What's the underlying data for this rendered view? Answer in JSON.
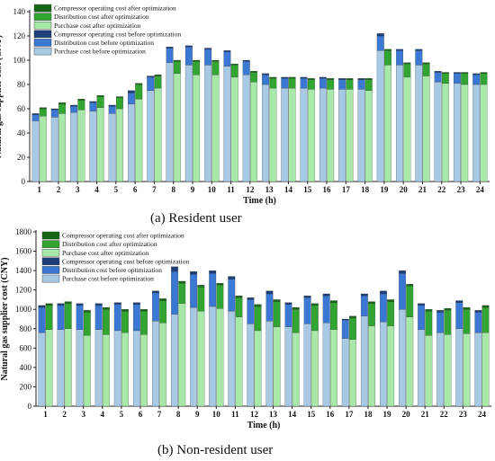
{
  "figure": {
    "caption_a": "(a) Resident user",
    "caption_b": "(b) Non-resident user"
  },
  "colors": {
    "purchase_before": "#a7c9e4",
    "distribution_before": "#3a78d4",
    "compressor_before": "#1d3e78",
    "purchase_after": "#a8e8a8",
    "distribution_after": "#32a432",
    "compressor_after": "#166616"
  },
  "chart_data": [
    {
      "type": "bar",
      "stacked": true,
      "grouped": true,
      "title": "",
      "xlabel": "Time (h)",
      "ylabel": "Natural gas supplier cost (CNY)",
      "ylim": [
        0,
        140
      ],
      "yticks": [
        0,
        20,
        40,
        60,
        80,
        100,
        120,
        140
      ],
      "categories": [
        "1",
        "2",
        "3",
        "4",
        "5",
        "6",
        "7",
        "8",
        "9",
        "10",
        "11",
        "12",
        "13",
        "14",
        "15",
        "16",
        "17",
        "18",
        "19",
        "20",
        "21",
        "22",
        "23",
        "24"
      ],
      "grid": false,
      "legend_position": "top-left",
      "legend": [
        "Compressor operating cost after optimization",
        "Distribution cost after optimization",
        "Purchase cost after optimization",
        "Compressor operating cost before optimization",
        "Distribution cost before optimization",
        "Purchase cost before optimization"
      ],
      "series": [
        {
          "name": "Purchase cost before optimization",
          "group": "before",
          "values": [
            50,
            53,
            57,
            58,
            56,
            64,
            75,
            98,
            96,
            96,
            95,
            88,
            80,
            77,
            77,
            77,
            76,
            76,
            108,
            96,
            96,
            82,
            81,
            80
          ]
        },
        {
          "name": "Distribution cost before optimization",
          "group": "before",
          "values": [
            5,
            6,
            5,
            7,
            6,
            9,
            11,
            12,
            15,
            13,
            12,
            11,
            8,
            8,
            8,
            8,
            8,
            8,
            12,
            12,
            12,
            8,
            8,
            8
          ]
        },
        {
          "name": "Compressor operating cost before optimization",
          "group": "before",
          "values": [
            1,
            1,
            1,
            1,
            1,
            2,
            1,
            1,
            1,
            1,
            1,
            1,
            1,
            1,
            1,
            1,
            1,
            1,
            2,
            1,
            1,
            1,
            1,
            1
          ]
        },
        {
          "name": "Purchase cost after optimization",
          "group": "after",
          "values": [
            54,
            56,
            59,
            61,
            60,
            68,
            77,
            89,
            88,
            88,
            86,
            82,
            77,
            77,
            76,
            76,
            76,
            75,
            96,
            86,
            87,
            81,
            80,
            80
          ]
        },
        {
          "name": "Distribution cost after optimization",
          "group": "after",
          "values": [
            6,
            8,
            8,
            9,
            9,
            12,
            10,
            10,
            11,
            11,
            10,
            8,
            8,
            8,
            8,
            8,
            8,
            9,
            12,
            11,
            10,
            8,
            9,
            9
          ]
        },
        {
          "name": "Compressor operating cost after optimization",
          "group": "after",
          "values": [
            1,
            1,
            1,
            1,
            1,
            1,
            1,
            1,
            1,
            1,
            1,
            1,
            1,
            1,
            1,
            1,
            1,
            1,
            1,
            1,
            1,
            1,
            1,
            1
          ]
        }
      ]
    },
    {
      "type": "bar",
      "stacked": true,
      "grouped": true,
      "title": "",
      "xlabel": "Time (h)",
      "ylabel": "Natural gas supplier cost (CNY)",
      "ylim": [
        0,
        1800
      ],
      "yticks": [
        0,
        200,
        400,
        600,
        800,
        1000,
        1200,
        1400,
        1600,
        1800
      ],
      "categories": [
        "1",
        "2",
        "3",
        "4",
        "5",
        "6",
        "7",
        "8",
        "9",
        "10",
        "11",
        "12",
        "13",
        "14",
        "15",
        "16",
        "17",
        "18",
        "19",
        "20",
        "21",
        "22",
        "23",
        "24"
      ],
      "grid": false,
      "legend_position": "top-left",
      "legend": [
        "Compressor operating cost after optimization",
        "Distribution cost after optimization",
        "Purchase cost after optimization",
        "Compressor operating cost before optimization",
        "Distribution cost before optimization",
        "Purchase cost before optimization"
      ],
      "series": [
        {
          "name": "Purchase cost before optimization",
          "group": "before",
          "values": [
            760,
            790,
            790,
            790,
            780,
            780,
            880,
            950,
            1020,
            1030,
            980,
            850,
            880,
            820,
            850,
            860,
            700,
            930,
            870,
            1000,
            790,
            760,
            800,
            760
          ]
        },
        {
          "name": "Distribution cost before optimization",
          "group": "before",
          "values": [
            260,
            250,
            250,
            250,
            270,
            270,
            290,
            440,
            340,
            340,
            330,
            250,
            280,
            230,
            270,
            280,
            190,
            210,
            290,
            370,
            250,
            210,
            270,
            210
          ]
        },
        {
          "name": "Compressor operating cost before optimization",
          "group": "before",
          "values": [
            20,
            20,
            20,
            20,
            20,
            20,
            20,
            50,
            30,
            30,
            30,
            20,
            30,
            20,
            20,
            20,
            10,
            20,
            30,
            30,
            20,
            20,
            20,
            20
          ]
        },
        {
          "name": "Purchase cost after optimization",
          "group": "after",
          "values": [
            790,
            800,
            730,
            740,
            760,
            740,
            860,
            1060,
            980,
            1010,
            920,
            780,
            820,
            760,
            780,
            790,
            690,
            830,
            830,
            920,
            730,
            740,
            750,
            760
          ]
        },
        {
          "name": "Distribution cost after optimization",
          "group": "after",
          "values": [
            250,
            260,
            240,
            260,
            220,
            240,
            230,
            210,
            250,
            240,
            200,
            250,
            260,
            240,
            260,
            280,
            220,
            230,
            250,
            320,
            250,
            250,
            250,
            260
          ]
        },
        {
          "name": "Compressor operating cost after optimization",
          "group": "after",
          "values": [
            20,
            20,
            20,
            20,
            20,
            20,
            20,
            20,
            20,
            20,
            20,
            20,
            20,
            20,
            20,
            20,
            20,
            20,
            20,
            20,
            20,
            20,
            20,
            20
          ]
        }
      ]
    }
  ]
}
